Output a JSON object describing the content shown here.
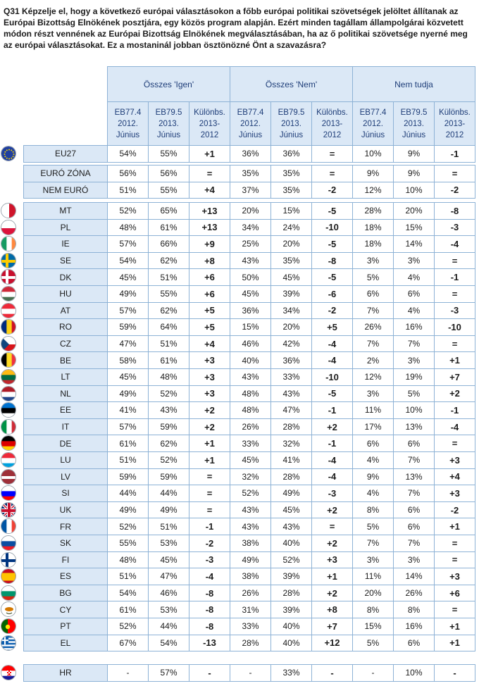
{
  "question": "Q31 Képzelje el, hogy a következő európai választásokon a főbb európai politikai szövetségek jelöltet állítanak az Európai Bizottság Elnökének posztjára, egy közös program alapján. Ezért minden tagállam állampolgárai közvetett módon részt vennének az Európai Bizottság Elnökének megválasztásában, ha az ő politikai szövetsége nyerné meg az európai választásokat. Ez a mostaninál jobban ösztönözné Önt a szavazásra?",
  "groups": [
    "Összes 'Igen'",
    "Összes 'Nem'",
    "Nem tudja"
  ],
  "subheaders": [
    [
      "EB77.4",
      "2012.",
      "Június"
    ],
    [
      "EB79.5",
      "2013.",
      "Június"
    ],
    [
      "Különbs.",
      "2013-",
      "2012"
    ]
  ],
  "sections": [
    [
      {
        "label": "EU27",
        "flag": "eu",
        "values": [
          "54%",
          "55%",
          "+1",
          "36%",
          "36%",
          "=",
          "10%",
          "9%",
          "-1"
        ]
      }
    ],
    [
      {
        "label": "EURÓ ZÓNA",
        "flag": null,
        "values": [
          "56%",
          "56%",
          "=",
          "35%",
          "35%",
          "=",
          "9%",
          "9%",
          "="
        ]
      },
      {
        "label": "NEM EURÓ",
        "flag": null,
        "values": [
          "51%",
          "55%",
          "+4",
          "37%",
          "35%",
          "-2",
          "12%",
          "10%",
          "-2"
        ]
      }
    ],
    [
      {
        "label": "MT",
        "flag": "mt",
        "values": [
          "52%",
          "65%",
          "+13",
          "20%",
          "15%",
          "-5",
          "28%",
          "20%",
          "-8"
        ]
      },
      {
        "label": "PL",
        "flag": "pl",
        "values": [
          "48%",
          "61%",
          "+13",
          "34%",
          "24%",
          "-10",
          "18%",
          "15%",
          "-3"
        ]
      },
      {
        "label": "IE",
        "flag": "ie",
        "values": [
          "57%",
          "66%",
          "+9",
          "25%",
          "20%",
          "-5",
          "18%",
          "14%",
          "-4"
        ]
      },
      {
        "label": "SE",
        "flag": "se",
        "values": [
          "54%",
          "62%",
          "+8",
          "43%",
          "35%",
          "-8",
          "3%",
          "3%",
          "="
        ]
      },
      {
        "label": "DK",
        "flag": "dk",
        "values": [
          "45%",
          "51%",
          "+6",
          "50%",
          "45%",
          "-5",
          "5%",
          "4%",
          "-1"
        ]
      },
      {
        "label": "HU",
        "flag": "hu",
        "values": [
          "49%",
          "55%",
          "+6",
          "45%",
          "39%",
          "-6",
          "6%",
          "6%",
          "="
        ]
      },
      {
        "label": "AT",
        "flag": "at",
        "values": [
          "57%",
          "62%",
          "+5",
          "36%",
          "34%",
          "-2",
          "7%",
          "4%",
          "-3"
        ]
      },
      {
        "label": "RO",
        "flag": "ro",
        "values": [
          "59%",
          "64%",
          "+5",
          "15%",
          "20%",
          "+5",
          "26%",
          "16%",
          "-10"
        ]
      },
      {
        "label": "CZ",
        "flag": "cz",
        "values": [
          "47%",
          "51%",
          "+4",
          "46%",
          "42%",
          "-4",
          "7%",
          "7%",
          "="
        ]
      },
      {
        "label": "BE",
        "flag": "be",
        "values": [
          "58%",
          "61%",
          "+3",
          "40%",
          "36%",
          "-4",
          "2%",
          "3%",
          "+1"
        ]
      },
      {
        "label": "LT",
        "flag": "lt",
        "values": [
          "45%",
          "48%",
          "+3",
          "43%",
          "33%",
          "-10",
          "12%",
          "19%",
          "+7"
        ]
      },
      {
        "label": "NL",
        "flag": "nl",
        "values": [
          "49%",
          "52%",
          "+3",
          "48%",
          "43%",
          "-5",
          "3%",
          "5%",
          "+2"
        ]
      },
      {
        "label": "EE",
        "flag": "ee",
        "values": [
          "41%",
          "43%",
          "+2",
          "48%",
          "47%",
          "-1",
          "11%",
          "10%",
          "-1"
        ]
      },
      {
        "label": "IT",
        "flag": "it",
        "values": [
          "57%",
          "59%",
          "+2",
          "26%",
          "28%",
          "+2",
          "17%",
          "13%",
          "-4"
        ]
      },
      {
        "label": "DE",
        "flag": "de",
        "values": [
          "61%",
          "62%",
          "+1",
          "33%",
          "32%",
          "-1",
          "6%",
          "6%",
          "="
        ]
      },
      {
        "label": "LU",
        "flag": "lu",
        "values": [
          "51%",
          "52%",
          "+1",
          "45%",
          "41%",
          "-4",
          "4%",
          "7%",
          "+3"
        ]
      },
      {
        "label": "LV",
        "flag": "lv",
        "values": [
          "59%",
          "59%",
          "=",
          "32%",
          "28%",
          "-4",
          "9%",
          "13%",
          "+4"
        ]
      },
      {
        "label": "SI",
        "flag": "si",
        "values": [
          "44%",
          "44%",
          "=",
          "52%",
          "49%",
          "-3",
          "4%",
          "7%",
          "+3"
        ]
      },
      {
        "label": "UK",
        "flag": "uk",
        "values": [
          "49%",
          "49%",
          "=",
          "43%",
          "45%",
          "+2",
          "8%",
          "6%",
          "-2"
        ]
      },
      {
        "label": "FR",
        "flag": "fr",
        "values": [
          "52%",
          "51%",
          "-1",
          "43%",
          "43%",
          "=",
          "5%",
          "6%",
          "+1"
        ]
      },
      {
        "label": "SK",
        "flag": "sk",
        "values": [
          "55%",
          "53%",
          "-2",
          "38%",
          "40%",
          "+2",
          "7%",
          "7%",
          "="
        ]
      },
      {
        "label": "FI",
        "flag": "fi",
        "values": [
          "48%",
          "45%",
          "-3",
          "49%",
          "52%",
          "+3",
          "3%",
          "3%",
          "="
        ]
      },
      {
        "label": "ES",
        "flag": "es",
        "values": [
          "51%",
          "47%",
          "-4",
          "38%",
          "39%",
          "+1",
          "11%",
          "14%",
          "+3"
        ]
      },
      {
        "label": "BG",
        "flag": "bg",
        "values": [
          "54%",
          "46%",
          "-8",
          "26%",
          "28%",
          "+2",
          "20%",
          "26%",
          "+6"
        ]
      },
      {
        "label": "CY",
        "flag": "cy",
        "values": [
          "61%",
          "53%",
          "-8",
          "31%",
          "39%",
          "+8",
          "8%",
          "8%",
          "="
        ]
      },
      {
        "label": "PT",
        "flag": "pt",
        "values": [
          "52%",
          "44%",
          "-8",
          "33%",
          "40%",
          "+7",
          "15%",
          "16%",
          "+1"
        ]
      },
      {
        "label": "EL",
        "flag": "el",
        "values": [
          "67%",
          "54%",
          "-13",
          "28%",
          "40%",
          "+12",
          "5%",
          "6%",
          "+1"
        ]
      }
    ],
    [
      {
        "label": "HR",
        "flag": "hr",
        "values": [
          "-",
          "57%",
          "-",
          "-",
          "33%",
          "-",
          "-",
          "10%",
          "-"
        ]
      }
    ]
  ]
}
